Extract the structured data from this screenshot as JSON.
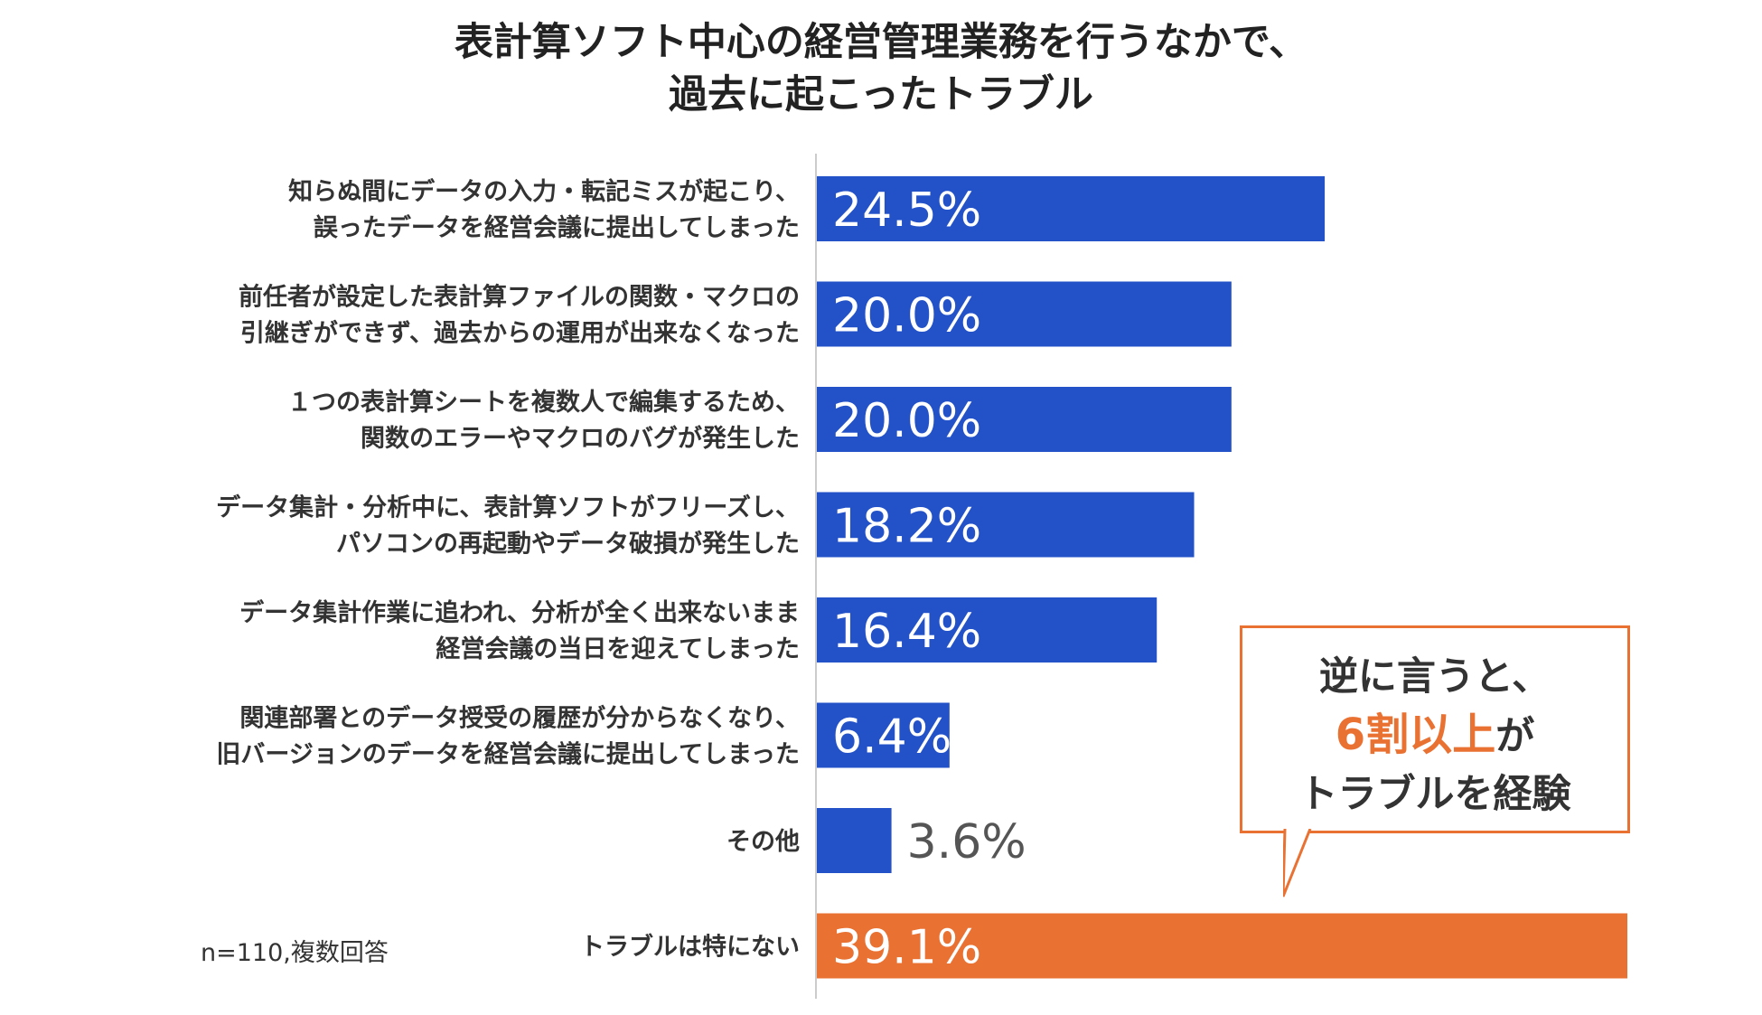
{
  "title": [
    "表計算ソフト中心の経営管理業務を行うなかで、",
    "過去に起こったトラブル"
  ],
  "sample_note": "n=110,複数回答",
  "callout": {
    "line1": "逆に言うと、",
    "highlight": "6割以上",
    "suffix": "が",
    "line3": "トラブルを経験"
  },
  "colors": {
    "bar": "#2251c8",
    "highlight": "#e97132",
    "axis": "#cccccc"
  },
  "chart_data": {
    "type": "bar",
    "orientation": "horizontal",
    "title": "表計算ソフト中心の経営管理業務を行うなかで、過去に起こったトラブル",
    "categories": [
      [
        "知らぬ間にデータの入力・転記ミスが起こり、",
        "誤ったデータを経営会議に提出してしまった"
      ],
      [
        "前任者が設定した表計算ファイルの関数・マクロの",
        "引継ぎができず、過去からの運用が出来なくなった"
      ],
      [
        "１つの表計算シートを複数人で編集するため、",
        "関数のエラーやマクロのバグが発生した"
      ],
      [
        "データ集計・分析中に、表計算ソフトがフリーズし、",
        "パソコンの再起動やデータ破損が発生した"
      ],
      [
        "データ集計作業に追われ、分析が全く出来ないまま",
        "経営会議の当日を迎えてしまった"
      ],
      [
        "関連部署とのデータ授受の履歴が分からなくなり、",
        "旧バージョンのデータを経営会議に提出してしまった"
      ],
      [
        "その他"
      ],
      [
        "トラブルは特にない"
      ]
    ],
    "values": [
      24.5,
      20.0,
      20.0,
      18.2,
      16.4,
      6.4,
      3.6,
      39.1
    ],
    "value_labels": [
      "24.5%",
      "20.0%",
      "20.0%",
      "18.2%",
      "16.4%",
      "6.4%",
      "3.6%",
      "39.1%"
    ],
    "highlight_index": 7,
    "xlim": [
      0,
      39.1
    ],
    "grid": false,
    "legend": "none"
  }
}
